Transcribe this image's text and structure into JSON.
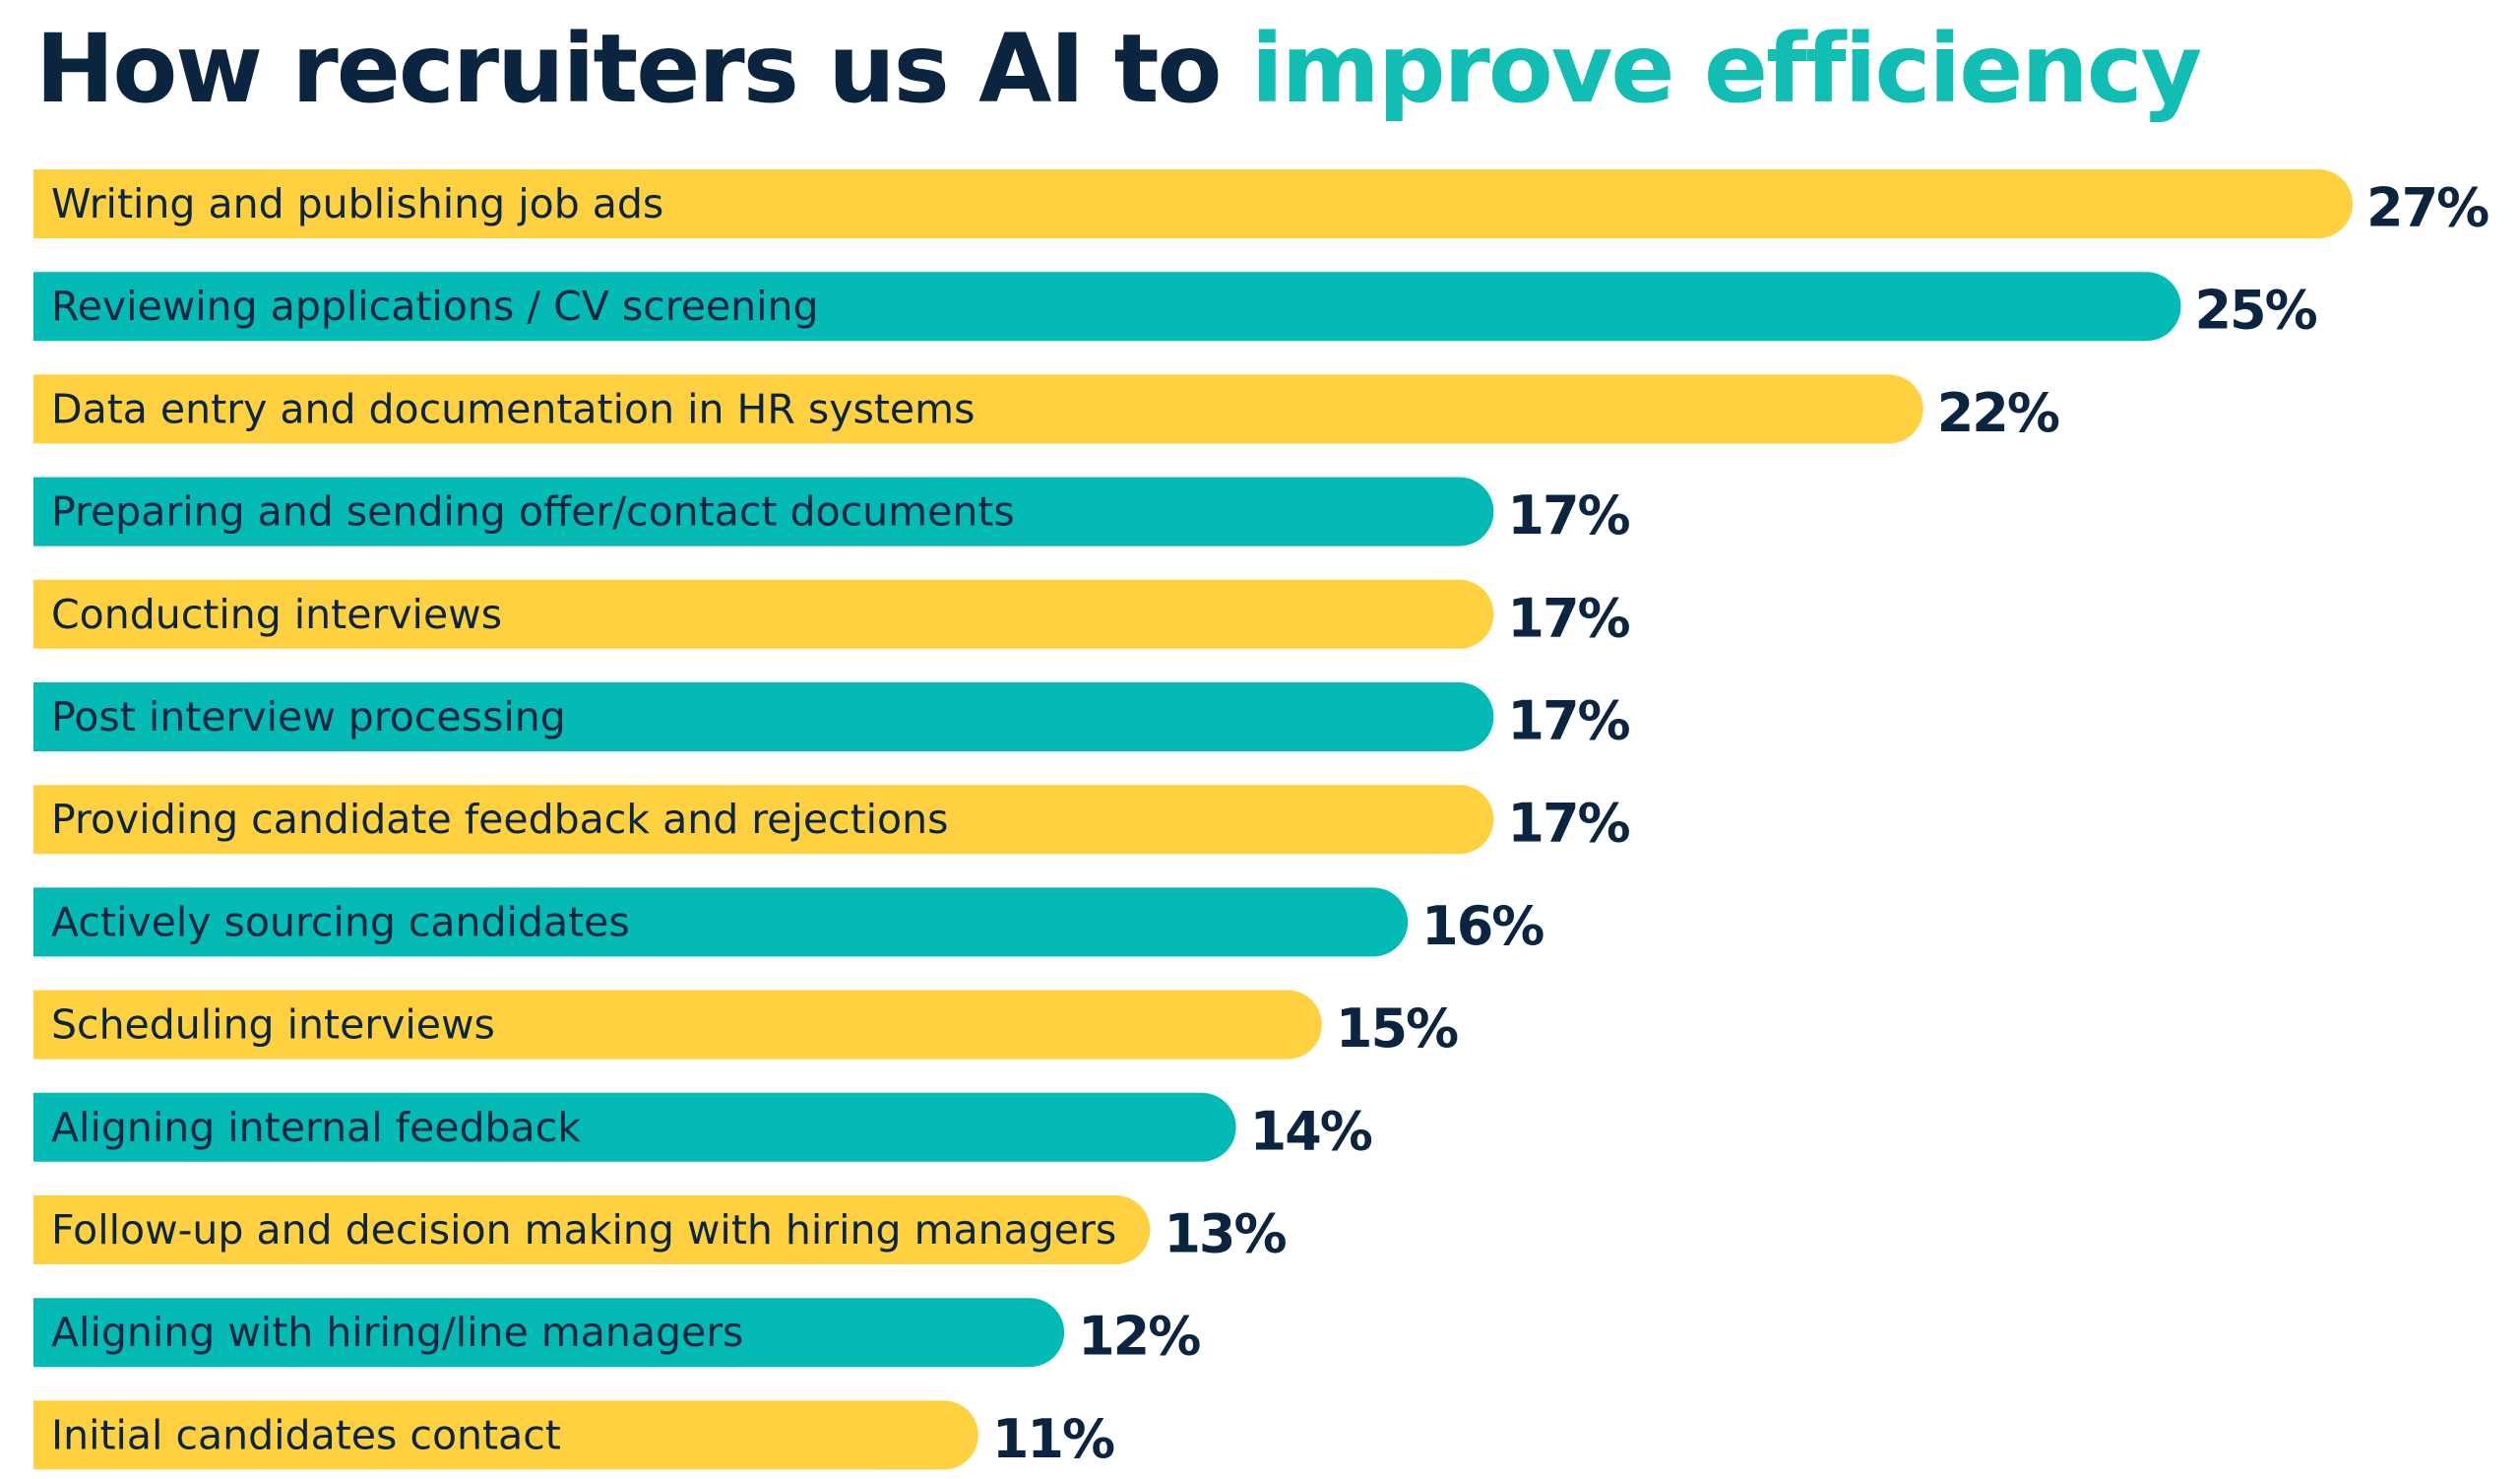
{
  "title": {
    "main": "How recruiters us AI to ",
    "accent": "improve efficiency"
  },
  "colors": {
    "title": "#0b2540",
    "accent": "#12bdb4",
    "bar_yellow": "#ffd03f",
    "bar_teal": "#04bab4",
    "text": "#0b2540"
  },
  "chart_data": {
    "type": "bar",
    "orientation": "horizontal",
    "title": "How recruiters us AI to improve efficiency",
    "xlabel": "",
    "ylabel": "",
    "unit": "%",
    "grid": false,
    "legend": "none",
    "xlim": [
      0,
      27
    ],
    "categories": [
      "Writing and publishing job ads",
      "Reviewing applications / CV screening",
      "Data entry and documentation in HR systems",
      "Preparing and sending offer/contact documents",
      "Conducting interviews",
      "Post interview processing",
      "Providing candidate feedback and rejections",
      "Actively sourcing candidates",
      "Scheduling interviews",
      "Aligning internal feedback",
      "Follow-up and decision making with hiring managers",
      "Aligning with hiring/line managers",
      "Initial candidates contact"
    ],
    "values": [
      27,
      25,
      22,
      17,
      17,
      17,
      17,
      16,
      15,
      14,
      13,
      12,
      11
    ],
    "value_labels": [
      "27%",
      "25%",
      "22%",
      "17%",
      "17%",
      "17%",
      "17%",
      "16%",
      "15%",
      "14%",
      "13%",
      "12%",
      "11%"
    ],
    "bar_colors": [
      "yellow",
      "teal",
      "yellow",
      "teal",
      "yellow",
      "teal",
      "yellow",
      "teal",
      "yellow",
      "teal",
      "yellow",
      "teal",
      "yellow"
    ]
  }
}
